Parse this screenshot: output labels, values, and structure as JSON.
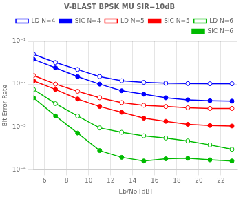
{
  "chart_data": {
    "type": "line",
    "title": "V-BLAST BPSK MU SIR=10dB",
    "xlabel": "Eb/No [dB]",
    "ylabel": "Bit Error Rate",
    "log": "y",
    "grid": true,
    "legend": "upper right",
    "xlim": [
      5,
      23.5
    ],
    "ylim": [
      0.0001,
      0.1
    ],
    "xticks": [
      6,
      8,
      10,
      12,
      14,
      16,
      18,
      20,
      22
    ],
    "yticks": [
      {
        "value": 0.0001,
        "label": "10⁻⁴"
      },
      {
        "value": 0.001,
        "label": "10⁻³"
      },
      {
        "value": 0.01,
        "label": "10⁻²"
      },
      {
        "value": 0.1,
        "label": "10⁻¹"
      }
    ],
    "x": [
      5,
      7,
      9,
      11,
      13,
      15,
      17,
      19,
      21,
      23
    ],
    "series": [
      {
        "name": "LD N=4",
        "color": "#0000ff",
        "marker": "open_circle",
        "values": [
          0.05,
          0.032,
          0.022,
          0.015,
          0.012,
          0.011,
          0.0105,
          0.0103,
          0.0102,
          0.0102
        ]
      },
      {
        "name": "SIC N=4",
        "color": "#0000ff",
        "marker": "circle",
        "values": [
          0.038,
          0.024,
          0.015,
          0.01,
          0.007,
          0.0058,
          0.0048,
          0.0043,
          0.0041,
          0.004
        ]
      },
      {
        "name": "LD N=5",
        "color": "#ff0000",
        "marker": "open_circle",
        "values": [
          0.016,
          0.01,
          0.0068,
          0.0048,
          0.0037,
          0.0032,
          0.003,
          0.0028,
          0.0027,
          0.0027
        ]
      },
      {
        "name": "SIC N=5",
        "color": "#ff0000",
        "marker": "circle",
        "values": [
          0.012,
          0.0075,
          0.0045,
          0.003,
          0.0022,
          0.0016,
          0.00135,
          0.00115,
          0.00108,
          0.00105
        ]
      },
      {
        "name": "LD N=6",
        "color": "#00bb00",
        "marker": "open_circle",
        "values": [
          0.0075,
          0.0035,
          0.0018,
          0.00095,
          0.00075,
          0.00062,
          0.00055,
          0.00047,
          0.00038,
          0.0003
        ]
      },
      {
        "name": "SIC N=6",
        "color": "#00bb00",
        "marker": "circle",
        "values": [
          0.0048,
          0.0018,
          0.00072,
          0.00028,
          0.000195,
          0.00016,
          0.00018,
          0.000185,
          0.00017,
          0.00016
        ]
      }
    ]
  }
}
